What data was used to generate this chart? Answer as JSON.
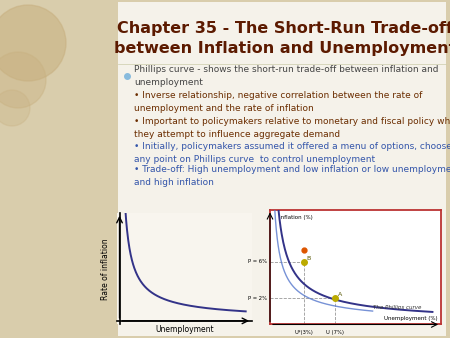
{
  "title_line1": "Chapter 35 - The Short-Run Trade-off",
  "title_line2": "between Inflation and Unemployment",
  "title_color": "#5C1A00",
  "title_fontsize": 11.5,
  "bg_color": "#D9CDAC",
  "content_bg": "#F0EBE0",
  "bullet0_text": "Phillips curve - shows the short-run trade-off between inflation and\nunemployment",
  "bullet0_color": "#444444",
  "bullet0_bullet_color": "#88BBDD",
  "bullets": [
    "Inverse relationship, negative correlation between the rate of\nunemployment and the rate of inflation",
    "Important to policymakers relative to monetary and fiscal policy when\nthey attempt to influence aggregate demand",
    "Initially, policymakers assumed it offered a menu of options, choose\nany point on Phillips curve  to control unemployment",
    "Trade-off: High unemployment and low inflation or low unemployment\nand high inflation"
  ],
  "bullet_colors": [
    "#6B2D00",
    "#6B2D00",
    "#3355AA",
    "#3355AA"
  ],
  "bullet_fontsize": 6.5,
  "left_chart_bg": "#F8F5EE",
  "right_chart_bg": "#FFFFFF",
  "right_chart_border": "#BB3333",
  "phillips_curve_color": "#333388",
  "point_A_color": "#BBAA00",
  "point_B_color": "#CC4400",
  "dashed_line_color": "#999999",
  "circle_color": "#C8B080"
}
